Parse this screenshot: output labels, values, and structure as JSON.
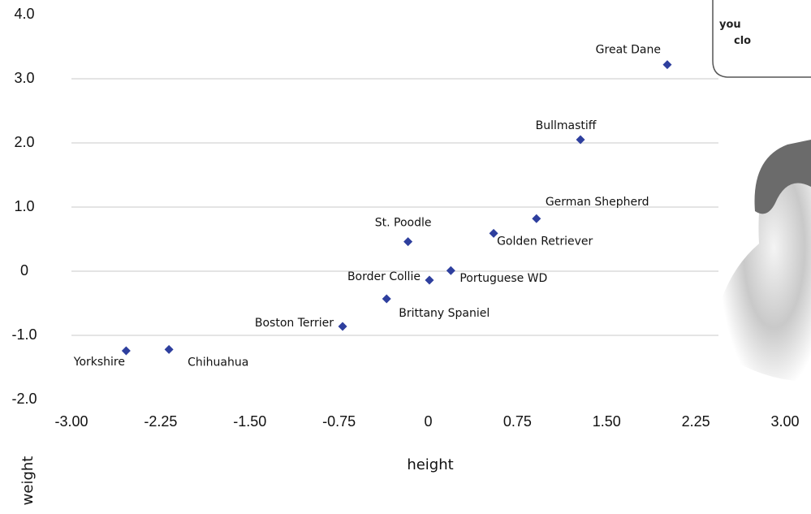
{
  "chart_data": {
    "type": "scatter",
    "x_label": "height",
    "y_label": "weight",
    "categories": [
      "Great Dane",
      "Bullmastiff",
      "German Shepherd",
      "Golden Retriever",
      "St. Poodle",
      "Portuguese WD",
      "Border Collie",
      "Brittany Spaniel",
      "Boston Terrier",
      "Chihuahua",
      "Yorkshire"
    ],
    "x": [
      2.01,
      1.28,
      0.91,
      0.55,
      -0.17,
      0.19,
      0.01,
      -0.35,
      -0.72,
      -2.18,
      -2.54
    ],
    "values": [
      3.22,
      2.05,
      0.82,
      0.59,
      0.46,
      0.01,
      -0.14,
      -0.43,
      -0.86,
      -1.22,
      -1.24
    ],
    "color": "#2e3f9e",
    "xlim": [
      -3,
      3
    ],
    "ylim": [
      -2,
      4
    ],
    "xticks": [
      {
        "value": -3,
        "label": "-3.00"
      },
      {
        "value": -2.25,
        "label": "-2.25"
      },
      {
        "value": -1.5,
        "label": "-1.50"
      },
      {
        "value": -0.75,
        "label": "-0.75"
      },
      0,
      {
        "value": 0.75,
        "label": "0.75"
      },
      {
        "value": 1.5,
        "label": "1.50"
      },
      {
        "value": 2.25,
        "label": "2.25"
      },
      {
        "value": 3,
        "label": "3.00"
      }
    ],
    "yticks": [
      {
        "value": -2,
        "label": "-2.0"
      },
      {
        "value": -1,
        "label": "-1.0"
      },
      0,
      {
        "value": 1,
        "label": "1.0"
      },
      {
        "value": 2,
        "label": "2.0"
      },
      {
        "value": 3,
        "label": "3.0"
      },
      {
        "value": 4,
        "label": "4.0"
      }
    ],
    "grid": true,
    "speech_bubble": [
      "you",
      "clo"
    ]
  }
}
